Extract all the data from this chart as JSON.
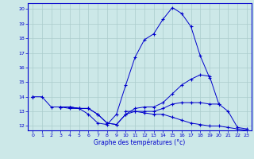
{
  "xlabel": "Graphe des températures (°c)",
  "bg_color": "#cce8e8",
  "grid_color": "#aacccc",
  "line_color": "#0000cc",
  "hours": [
    0,
    1,
    2,
    3,
    4,
    5,
    6,
    7,
    8,
    9,
    10,
    11,
    12,
    13,
    14,
    15,
    16,
    17,
    18,
    19,
    20,
    21,
    22,
    23
  ],
  "line1": [
    14.0,
    14.0,
    13.3,
    13.3,
    13.2,
    13.2,
    12.8,
    12.2,
    12.1,
    12.8,
    14.8,
    16.7,
    17.9,
    18.3,
    19.3,
    20.1,
    19.7,
    18.8,
    16.8,
    15.3,
    null,
    null,
    null,
    null
  ],
  "line2": [
    14.0,
    null,
    null,
    13.3,
    13.3,
    13.2,
    13.2,
    12.8,
    12.2,
    12.1,
    12.8,
    13.2,
    13.3,
    13.3,
    13.6,
    14.2,
    14.8,
    15.2,
    15.5,
    15.4,
    13.5,
    13.0,
    11.9,
    11.8
  ],
  "line3": [
    14.0,
    null,
    null,
    13.3,
    13.3,
    13.2,
    13.2,
    12.8,
    12.2,
    12.1,
    12.8,
    13.0,
    13.0,
    13.0,
    13.2,
    13.5,
    13.6,
    13.6,
    13.6,
    13.5,
    13.5,
    null,
    null,
    null
  ],
  "line4": [
    14.0,
    null,
    null,
    13.3,
    13.3,
    13.2,
    13.2,
    null,
    null,
    null,
    13.0,
    13.0,
    12.9,
    12.8,
    12.8,
    12.6,
    12.4,
    12.2,
    12.1,
    12.0,
    12.0,
    11.9,
    11.8,
    11.7
  ],
  "ylim": [
    12,
    20
  ],
  "yticks": [
    12,
    13,
    14,
    15,
    16,
    17,
    18,
    19,
    20
  ],
  "xticks": [
    0,
    1,
    2,
    3,
    4,
    5,
    6,
    7,
    8,
    9,
    10,
    11,
    12,
    13,
    14,
    15,
    16,
    17,
    18,
    19,
    20,
    21,
    22,
    23
  ]
}
